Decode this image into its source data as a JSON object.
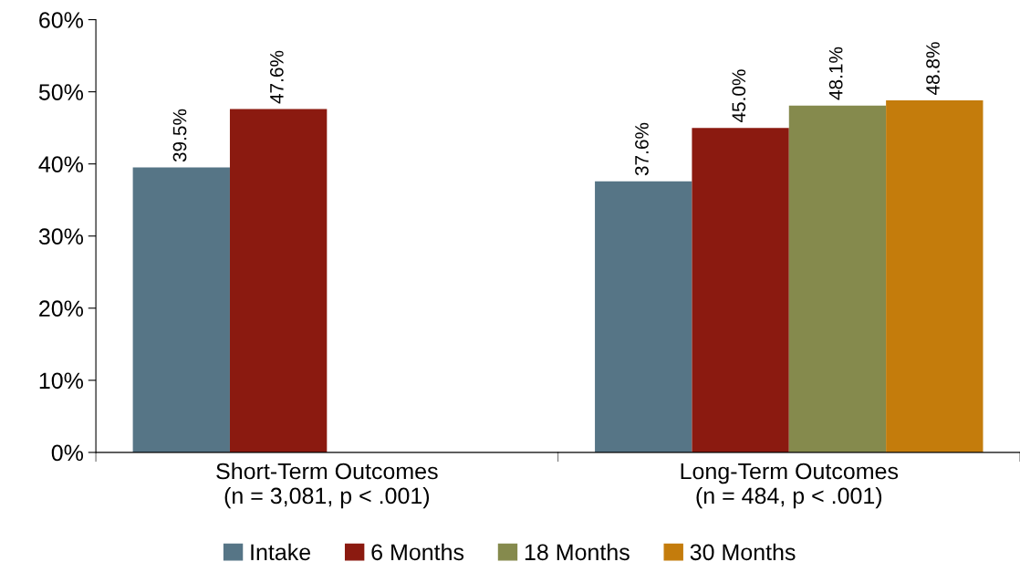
{
  "chart_data": {
    "type": "bar",
    "categories": [
      "Short-Term Outcomes\n(n = 3,081, p < .001)",
      "Long-Term Outcomes\n(n = 484, p < .001)"
    ],
    "series": [
      {
        "name": "Intake",
        "color": "#567586",
        "values": [
          39.5,
          37.6
        ]
      },
      {
        "name": "6 Months",
        "color": "#8b1a10",
        "values": [
          47.6,
          45.0
        ]
      },
      {
        "name": "18 Months",
        "color": "#858a4d",
        "values": [
          null,
          48.1
        ]
      },
      {
        "name": "30 Months",
        "color": "#c47c0c",
        "values": [
          null,
          48.8
        ]
      }
    ],
    "value_labels": [
      [
        "39.5%",
        "37.6%"
      ],
      [
        "47.6%",
        "45.0%"
      ],
      [
        null,
        "48.1%"
      ],
      [
        null,
        "48.8%"
      ]
    ],
    "ylim": [
      0,
      60
    ],
    "yticks": [
      {
        "value": 0,
        "label": "0%"
      },
      {
        "value": 10,
        "label": "10%"
      },
      {
        "value": 20,
        "label": "20%"
      },
      {
        "value": 30,
        "label": "30%"
      },
      {
        "value": 40,
        "label": "40%"
      },
      {
        "value": 50,
        "label": "50%"
      },
      {
        "value": 60,
        "label": "60%"
      }
    ],
    "grid": false,
    "legend": "bottom"
  }
}
